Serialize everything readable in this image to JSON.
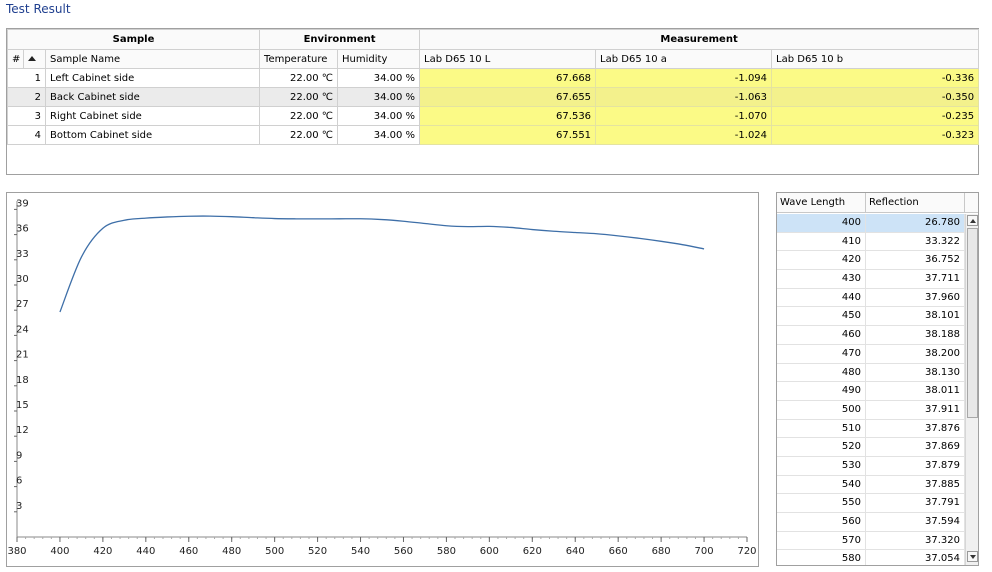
{
  "title": "Test Result",
  "results": {
    "bands": {
      "sample": "Sample",
      "environment": "Environment",
      "measurement": "Measurement"
    },
    "columns": {
      "index": "#",
      "sample_name": "Sample Name",
      "temperature": "Temperature",
      "humidity": "Humidity",
      "l": "Lab D65 10 L",
      "a": "Lab D65 10 a",
      "b": "Lab D65 10 b"
    },
    "rows": [
      {
        "index": "1",
        "name": "Left Cabinet side",
        "temperature": "22.00 ℃",
        "humidity": "34.00 %",
        "l": "67.668",
        "a": "-1.094",
        "b": "-0.336"
      },
      {
        "index": "2",
        "name": "Back Cabinet side",
        "temperature": "22.00 ℃",
        "humidity": "34.00 %",
        "l": "67.655",
        "a": "-1.063",
        "b": "-0.350"
      },
      {
        "index": "3",
        "name": "Right Cabinet side",
        "temperature": "22.00 ℃",
        "humidity": "34.00 %",
        "l": "67.536",
        "a": "-1.070",
        "b": "-0.235"
      },
      {
        "index": "4",
        "name": "Bottom Cabinet side",
        "temperature": "22.00 ℃",
        "humidity": "34.00 %",
        "l": "67.551",
        "a": "-1.024",
        "b": "-0.323"
      }
    ],
    "selected_row": 1,
    "highlight_color": "#fbfa86"
  },
  "chart_data": {
    "type": "line",
    "series": [
      {
        "x": [
          400,
          410,
          420,
          430,
          440,
          450,
          460,
          470,
          480,
          490,
          500,
          510,
          520,
          530,
          540,
          550,
          560,
          570,
          580,
          590,
          600,
          610,
          620,
          630,
          640,
          650,
          660,
          670,
          680,
          690,
          700
        ],
        "y": [
          26.78,
          33.322,
          36.752,
          37.711,
          37.96,
          38.101,
          38.188,
          38.2,
          38.13,
          38.011,
          37.911,
          37.876,
          37.869,
          37.879,
          37.885,
          37.791,
          37.594,
          37.32,
          37.054,
          36.95,
          36.98,
          36.85,
          36.6,
          36.4,
          36.25,
          36.1,
          35.85,
          35.55,
          35.2,
          34.8,
          34.3
        ]
      }
    ],
    "xlim": [
      380,
      720
    ],
    "ylim": [
      0,
      40
    ],
    "xticks": [
      380,
      400,
      420,
      440,
      460,
      480,
      500,
      520,
      540,
      560,
      580,
      600,
      620,
      640,
      660,
      680,
      700,
      720
    ],
    "yticks": [
      3,
      6,
      9,
      12,
      15,
      18,
      21,
      24,
      27,
      30,
      33,
      36,
      39
    ],
    "grid": false,
    "line_color": "#3e6fa8"
  },
  "wavelength_table": {
    "headers": {
      "wavelength": "Wave Length",
      "reflection": "Reflection"
    },
    "rows": [
      {
        "wl": "400",
        "r": "26.780"
      },
      {
        "wl": "410",
        "r": "33.322"
      },
      {
        "wl": "420",
        "r": "36.752"
      },
      {
        "wl": "430",
        "r": "37.711"
      },
      {
        "wl": "440",
        "r": "37.960"
      },
      {
        "wl": "450",
        "r": "38.101"
      },
      {
        "wl": "460",
        "r": "38.188"
      },
      {
        "wl": "470",
        "r": "38.200"
      },
      {
        "wl": "480",
        "r": "38.130"
      },
      {
        "wl": "490",
        "r": "38.011"
      },
      {
        "wl": "500",
        "r": "37.911"
      },
      {
        "wl": "510",
        "r": "37.876"
      },
      {
        "wl": "520",
        "r": "37.869"
      },
      {
        "wl": "530",
        "r": "37.879"
      },
      {
        "wl": "540",
        "r": "37.885"
      },
      {
        "wl": "550",
        "r": "37.791"
      },
      {
        "wl": "560",
        "r": "37.594"
      },
      {
        "wl": "570",
        "r": "37.320"
      },
      {
        "wl": "580",
        "r": "37.054"
      }
    ],
    "selected_row": 0
  }
}
